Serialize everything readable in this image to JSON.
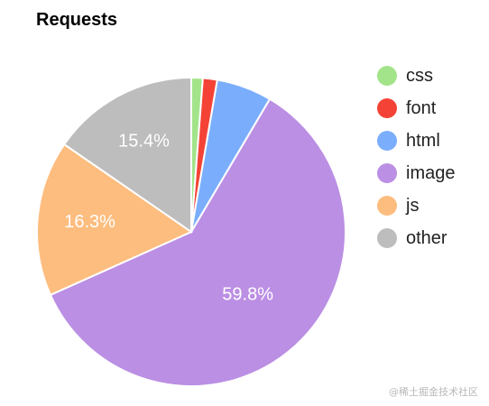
{
  "chart_data": {
    "type": "pie",
    "title": "Requests",
    "categories": [
      "css",
      "font",
      "html",
      "image",
      "js",
      "other"
    ],
    "values": [
      1.2,
      1.5,
      5.8,
      59.8,
      16.3,
      15.4
    ],
    "data_labels": [
      "",
      "",
      "",
      "59.8%",
      "16.3%",
      "15.4%"
    ],
    "colors": [
      "#a3e48a",
      "#f44336",
      "#7aaefc",
      "#bb8fe4",
      "#fdbd7e",
      "#bdbdbd"
    ],
    "legend_position": "right",
    "start_angle_deg": 0,
    "direction": "clockwise"
  },
  "watermark": "@稀土掘金技术社区"
}
